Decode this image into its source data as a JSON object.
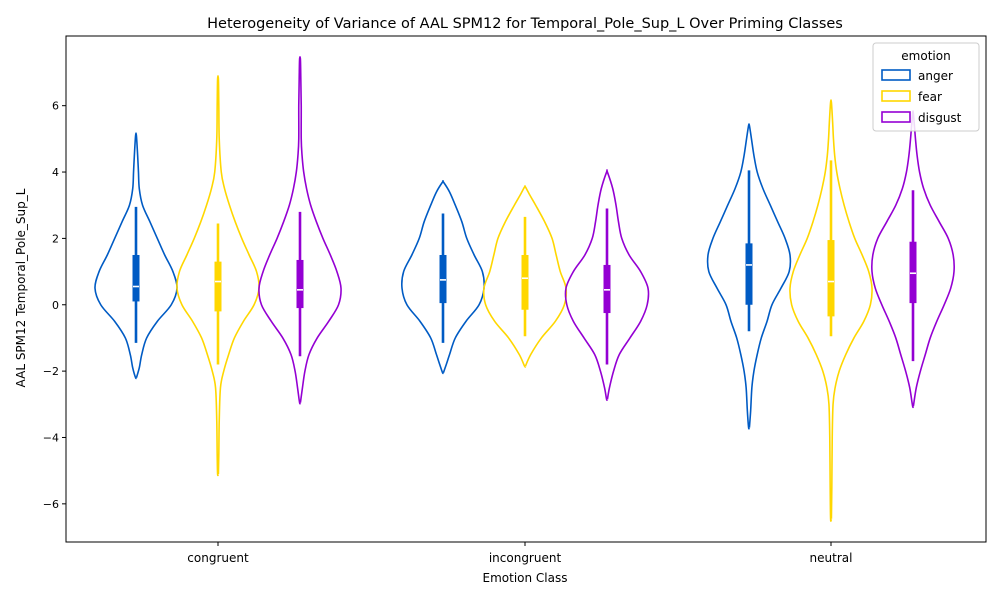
{
  "chart_data": {
    "type": "violin",
    "title": "Heterogeneity of Variance of AAL SPM12 for Temporal_Pole_Sup_L Over Priming Classes",
    "xlabel": "Emotion Class",
    "ylabel": "AAL SPM12 Temporal_Pole_Sup_L",
    "categories": [
      "congruent",
      "incongruent",
      "neutral"
    ],
    "ylim": [
      -7.15,
      8.1
    ],
    "yticks": [
      -6,
      -4,
      -2,
      0,
      2,
      4,
      6
    ],
    "ytick_labels": [
      "−6",
      "−4",
      "−2",
      "0",
      "2",
      "4",
      "6"
    ],
    "grid": false,
    "legend": {
      "title": "emotion",
      "position": "top-right",
      "entries": [
        "anger",
        "fear",
        "disgust"
      ]
    },
    "series": [
      {
        "name": "anger",
        "color": "#005bc4",
        "groups": [
          {
            "min": -2.2,
            "max": 5.1,
            "median": 0.55,
            "q1": 0.1,
            "q3": 1.5,
            "whisker_low": -1.15,
            "whisker_high": 2.95,
            "profile": [
              [
                -2.2,
                0.01
              ],
              [
                -1.9,
                0.08
              ],
              [
                -1.5,
                0.14
              ],
              [
                -1.0,
                0.26
              ],
              [
                -0.5,
                0.52
              ],
              [
                0.0,
                0.86
              ],
              [
                0.5,
                1.0
              ],
              [
                1.0,
                0.9
              ],
              [
                1.5,
                0.7
              ],
              [
                2.0,
                0.52
              ],
              [
                2.5,
                0.34
              ],
              [
                3.0,
                0.16
              ],
              [
                3.5,
                0.08
              ],
              [
                4.0,
                0.06
              ],
              [
                4.5,
                0.04
              ],
              [
                5.1,
                0.01
              ]
            ]
          },
          {
            "min": -2.05,
            "max": 3.7,
            "median": 0.75,
            "q1": 0.05,
            "q3": 1.5,
            "whisker_low": -1.15,
            "whisker_high": 2.75,
            "profile": [
              [
                -2.05,
                0.01
              ],
              [
                -1.8,
                0.08
              ],
              [
                -1.5,
                0.16
              ],
              [
                -1.0,
                0.3
              ],
              [
                -0.5,
                0.56
              ],
              [
                0.0,
                0.88
              ],
              [
                0.5,
                1.0
              ],
              [
                1.0,
                0.96
              ],
              [
                1.5,
                0.76
              ],
              [
                2.0,
                0.58
              ],
              [
                2.5,
                0.46
              ],
              [
                3.0,
                0.3
              ],
              [
                3.4,
                0.16
              ],
              [
                3.7,
                0.01
              ]
            ]
          },
          {
            "min": -3.7,
            "max": 5.4,
            "median": 1.2,
            "q1": 0.0,
            "q3": 1.85,
            "whisker_low": -0.8,
            "whisker_high": 4.05,
            "profile": [
              [
                -3.7,
                0.01
              ],
              [
                -3.2,
                0.04
              ],
              [
                -2.5,
                0.07
              ],
              [
                -2.0,
                0.12
              ],
              [
                -1.5,
                0.2
              ],
              [
                -1.0,
                0.3
              ],
              [
                -0.5,
                0.44
              ],
              [
                0.0,
                0.56
              ],
              [
                0.5,
                0.78
              ],
              [
                1.0,
                0.98
              ],
              [
                1.5,
                1.0
              ],
              [
                2.0,
                0.88
              ],
              [
                2.5,
                0.7
              ],
              [
                3.0,
                0.52
              ],
              [
                3.5,
                0.34
              ],
              [
                4.0,
                0.2
              ],
              [
                4.5,
                0.12
              ],
              [
                5.0,
                0.06
              ],
              [
                5.4,
                0.01
              ]
            ]
          }
        ]
      },
      {
        "name": "fear",
        "color": "#ffd700",
        "groups": [
          {
            "min": -5.1,
            "max": 6.8,
            "median": 0.7,
            "q1": -0.2,
            "q3": 1.3,
            "whisker_low": -1.8,
            "whisker_high": 2.45,
            "profile": [
              [
                -5.1,
                0.01
              ],
              [
                -4.5,
                0.02
              ],
              [
                -3.5,
                0.03
              ],
              [
                -2.5,
                0.06
              ],
              [
                -2.0,
                0.14
              ],
              [
                -1.5,
                0.26
              ],
              [
                -1.0,
                0.4
              ],
              [
                -0.5,
                0.62
              ],
              [
                0.0,
                0.88
              ],
              [
                0.5,
                1.0
              ],
              [
                1.0,
                0.94
              ],
              [
                1.5,
                0.76
              ],
              [
                2.0,
                0.58
              ],
              [
                2.5,
                0.42
              ],
              [
                3.0,
                0.28
              ],
              [
                3.5,
                0.16
              ],
              [
                4.0,
                0.08
              ],
              [
                5.0,
                0.03
              ],
              [
                6.0,
                0.02
              ],
              [
                6.8,
                0.01
              ]
            ]
          },
          {
            "min": -1.85,
            "max": 3.55,
            "median": 0.8,
            "q1": -0.15,
            "q3": 1.5,
            "whisker_low": -0.95,
            "whisker_high": 2.65,
            "profile": [
              [
                -1.85,
                0.01
              ],
              [
                -1.5,
                0.14
              ],
              [
                -1.0,
                0.4
              ],
              [
                -0.5,
                0.74
              ],
              [
                0.0,
                0.96
              ],
              [
                0.5,
                1.0
              ],
              [
                1.0,
                0.86
              ],
              [
                1.5,
                0.76
              ],
              [
                2.0,
                0.66
              ],
              [
                2.5,
                0.48
              ],
              [
                3.0,
                0.26
              ],
              [
                3.3,
                0.12
              ],
              [
                3.55,
                0.01
              ]
            ]
          },
          {
            "min": -6.45,
            "max": 6.1,
            "median": 0.7,
            "q1": -0.35,
            "q3": 1.95,
            "whisker_low": -0.95,
            "whisker_high": 4.35,
            "profile": [
              [
                -6.45,
                0.01
              ],
              [
                -5.5,
                0.02
              ],
              [
                -4.0,
                0.03
              ],
              [
                -3.0,
                0.05
              ],
              [
                -2.5,
                0.1
              ],
              [
                -2.0,
                0.2
              ],
              [
                -1.5,
                0.36
              ],
              [
                -1.0,
                0.56
              ],
              [
                -0.5,
                0.8
              ],
              [
                0.0,
                0.96
              ],
              [
                0.5,
                1.0
              ],
              [
                1.0,
                0.92
              ],
              [
                1.5,
                0.76
              ],
              [
                2.0,
                0.58
              ],
              [
                2.5,
                0.44
              ],
              [
                3.0,
                0.32
              ],
              [
                3.5,
                0.22
              ],
              [
                4.0,
                0.14
              ],
              [
                4.5,
                0.09
              ],
              [
                5.0,
                0.06
              ],
              [
                5.5,
                0.04
              ],
              [
                6.1,
                0.01
              ]
            ]
          }
        ]
      },
      {
        "name": "disgust",
        "color": "#9400d3",
        "groups": [
          {
            "min": -2.95,
            "max": 7.4,
            "median": 0.45,
            "q1": -0.1,
            "q3": 1.35,
            "whisker_low": -1.55,
            "whisker_high": 2.8,
            "profile": [
              [
                -2.95,
                0.01
              ],
              [
                -2.5,
                0.06
              ],
              [
                -2.0,
                0.12
              ],
              [
                -1.5,
                0.22
              ],
              [
                -1.0,
                0.42
              ],
              [
                -0.5,
                0.7
              ],
              [
                0.0,
                0.94
              ],
              [
                0.5,
                1.0
              ],
              [
                1.0,
                0.9
              ],
              [
                1.5,
                0.74
              ],
              [
                2.0,
                0.56
              ],
              [
                2.5,
                0.4
              ],
              [
                3.0,
                0.26
              ],
              [
                3.5,
                0.16
              ],
              [
                4.0,
                0.09
              ],
              [
                4.5,
                0.05
              ],
              [
                5.0,
                0.03
              ],
              [
                6.0,
                0.03
              ],
              [
                6.8,
                0.02
              ],
              [
                7.4,
                0.01
              ]
            ]
          },
          {
            "min": -2.85,
            "max": 4.0,
            "median": 0.45,
            "q1": -0.25,
            "q3": 1.2,
            "whisker_low": -1.8,
            "whisker_high": 2.9,
            "profile": [
              [
                -2.85,
                0.01
              ],
              [
                -2.5,
                0.06
              ],
              [
                -2.0,
                0.16
              ],
              [
                -1.5,
                0.3
              ],
              [
                -1.0,
                0.56
              ],
              [
                -0.5,
                0.82
              ],
              [
                0.0,
                0.98
              ],
              [
                0.5,
                1.0
              ],
              [
                1.0,
                0.82
              ],
              [
                1.5,
                0.54
              ],
              [
                2.0,
                0.36
              ],
              [
                2.5,
                0.28
              ],
              [
                3.0,
                0.22
              ],
              [
                3.5,
                0.14
              ],
              [
                4.0,
                0.01
              ]
            ]
          },
          {
            "min": -3.05,
            "max": 5.75,
            "median": 0.95,
            "q1": 0.05,
            "q3": 1.9,
            "whisker_low": -1.7,
            "whisker_high": 3.45,
            "profile": [
              [
                -3.05,
                0.01
              ],
              [
                -2.5,
                0.08
              ],
              [
                -2.0,
                0.18
              ],
              [
                -1.5,
                0.3
              ],
              [
                -1.0,
                0.42
              ],
              [
                -0.5,
                0.58
              ],
              [
                0.0,
                0.76
              ],
              [
                0.5,
                0.92
              ],
              [
                1.0,
                1.0
              ],
              [
                1.5,
                0.98
              ],
              [
                2.0,
                0.86
              ],
              [
                2.5,
                0.64
              ],
              [
                3.0,
                0.42
              ],
              [
                3.5,
                0.26
              ],
              [
                4.0,
                0.16
              ],
              [
                4.5,
                0.1
              ],
              [
                5.0,
                0.06
              ],
              [
                5.75,
                0.01
              ]
            ]
          }
        ]
      }
    ]
  }
}
